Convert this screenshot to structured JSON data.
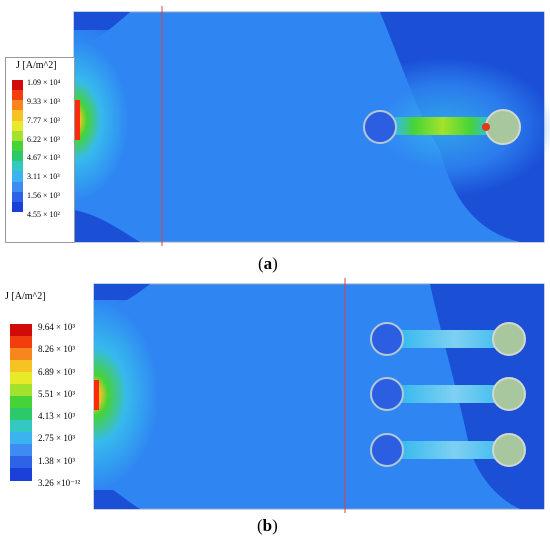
{
  "colors": {
    "background_blue": "#1a4fd6",
    "light_blue": "#2f86f2",
    "cyan": "#36b9ee",
    "pad_fill": "#a9c79f",
    "hole_fill": "#2b5ee0",
    "divider": "#d94040",
    "frame": "#8fa2c0"
  },
  "panel_a": {
    "caption_letter": "a",
    "legend": {
      "title": "J [A/m^2]",
      "ticks": [
        "1.09 × 10⁴",
        "9.33 × 10³",
        "7.77 × 10³",
        "6.22 × 10³",
        "4.67 × 10³",
        "3.11 × 10³",
        "1.56 × 10³",
        "4.55 × 10²"
      ],
      "colors": [
        "#d10a0a",
        "#f23d0f",
        "#f7861e",
        "#f5c323",
        "#e6ea28",
        "#a3e22c",
        "#46d338",
        "#2cc96a",
        "#33c9c2",
        "#3bb3ef",
        "#3e8cf3",
        "#2e63e8",
        "#1b3fd9"
      ]
    }
  },
  "panel_b": {
    "caption_letter": "b",
    "legend": {
      "title": "J [A/m^2]",
      "ticks": [
        "9.64 × 10³",
        "8.26 × 10³",
        "6.89 × 10³",
        "5.51 × 10³",
        "4.13 × 10³",
        "2.75 × 10³",
        "1.38 × 10³",
        "3.26 ×10⁻¹²"
      ],
      "colors": [
        "#d10a0a",
        "#f23d0f",
        "#f7861e",
        "#f5c323",
        "#e6ea28",
        "#a3e22c",
        "#46d338",
        "#2cc96a",
        "#33c9c2",
        "#3bb3ef",
        "#3e8cf3",
        "#2e63e8",
        "#1b3fd9"
      ]
    }
  }
}
